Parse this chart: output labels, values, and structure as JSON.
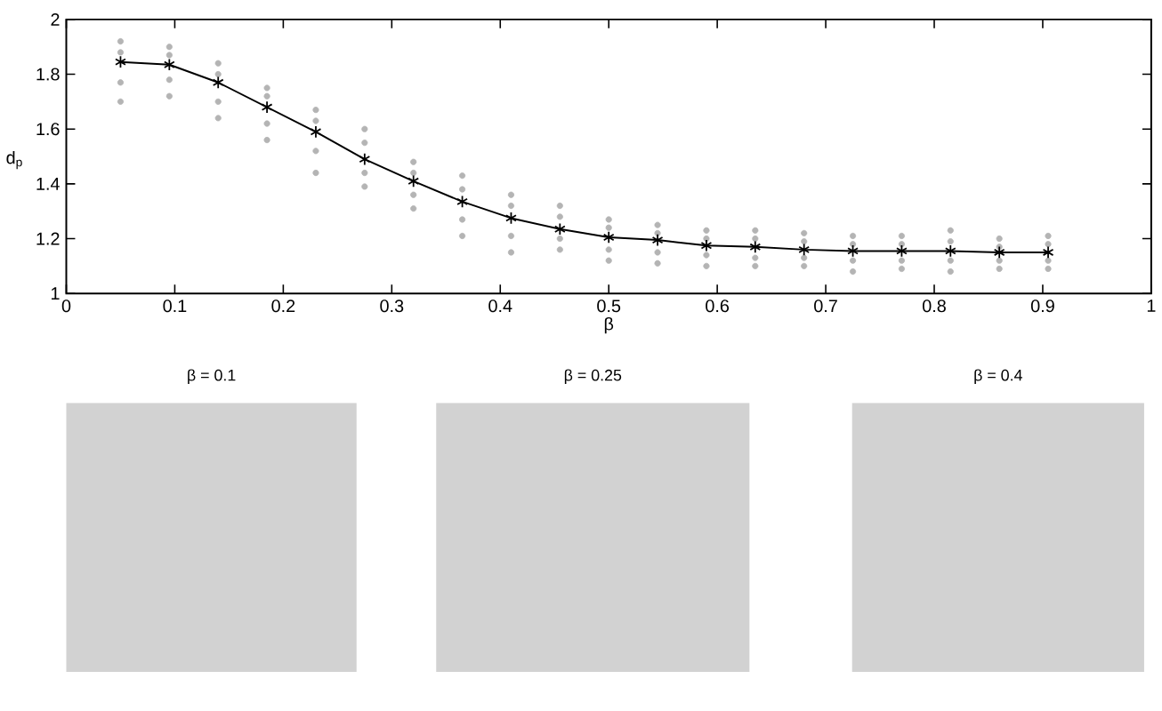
{
  "chart_data": {
    "type": "line",
    "xlabel": "β",
    "ylabel": "d$_{p}$",
    "xlim": [
      0,
      1
    ],
    "ylim": [
      1,
      2
    ],
    "xticks": [
      0,
      0.1,
      0.2,
      0.3,
      0.4,
      0.5,
      0.6,
      0.7,
      0.8,
      0.9,
      1
    ],
    "yticks": [
      1,
      1.2,
      1.4,
      1.6,
      1.8,
      2
    ],
    "x": [
      0.05,
      0.095,
      0.14,
      0.185,
      0.23,
      0.275,
      0.32,
      0.365,
      0.41,
      0.455,
      0.5,
      0.545,
      0.59,
      0.635,
      0.68,
      0.725,
      0.77,
      0.815,
      0.86,
      0.905
    ],
    "series": [
      {
        "type": "scatter",
        "color": "#b4b4b4",
        "marker": "circle",
        "x": [
          0.05,
          0.05,
          0.05,
          0.05,
          0.095,
          0.095,
          0.095,
          0.095,
          0.14,
          0.14,
          0.14,
          0.14,
          0.185,
          0.185,
          0.185,
          0.185,
          0.23,
          0.23,
          0.23,
          0.23,
          0.275,
          0.275,
          0.275,
          0.275,
          0.32,
          0.32,
          0.32,
          0.32,
          0.365,
          0.365,
          0.365,
          0.365,
          0.41,
          0.41,
          0.41,
          0.41,
          0.455,
          0.455,
          0.455,
          0.455,
          0.5,
          0.5,
          0.5,
          0.5,
          0.545,
          0.545,
          0.545,
          0.545,
          0.59,
          0.59,
          0.59,
          0.59,
          0.635,
          0.635,
          0.635,
          0.635,
          0.68,
          0.68,
          0.68,
          0.68,
          0.725,
          0.725,
          0.725,
          0.725,
          0.77,
          0.77,
          0.77,
          0.77,
          0.815,
          0.815,
          0.815,
          0.815,
          0.86,
          0.86,
          0.86,
          0.86,
          0.905,
          0.905,
          0.905,
          0.905
        ],
        "values": [
          1.7,
          1.77,
          1.88,
          1.92,
          1.72,
          1.78,
          1.87,
          1.9,
          1.64,
          1.7,
          1.8,
          1.84,
          1.56,
          1.62,
          1.72,
          1.75,
          1.44,
          1.52,
          1.63,
          1.67,
          1.39,
          1.44,
          1.55,
          1.6,
          1.31,
          1.36,
          1.44,
          1.48,
          1.21,
          1.27,
          1.38,
          1.43,
          1.15,
          1.21,
          1.32,
          1.36,
          1.16,
          1.2,
          1.28,
          1.32,
          1.12,
          1.16,
          1.24,
          1.27,
          1.11,
          1.15,
          1.22,
          1.25,
          1.1,
          1.14,
          1.2,
          1.23,
          1.1,
          1.13,
          1.2,
          1.23,
          1.1,
          1.13,
          1.19,
          1.22,
          1.08,
          1.12,
          1.18,
          1.21,
          1.09,
          1.12,
          1.18,
          1.21,
          1.08,
          1.12,
          1.19,
          1.23,
          1.09,
          1.12,
          1.17,
          1.2,
          1.09,
          1.12,
          1.18,
          1.21
        ]
      },
      {
        "color": "#000000",
        "marker": "cross",
        "values": [
          1.845,
          1.835,
          1.77,
          1.68,
          1.59,
          1.49,
          1.41,
          1.335,
          1.275,
          1.235,
          1.205,
          1.195,
          1.175,
          1.17,
          1.16,
          1.155,
          1.155,
          1.155,
          1.15,
          1.15
        ]
      }
    ],
    "annotations": [
      "β = 0.1",
      "β = 0.25",
      "β = 0.4"
    ]
  }
}
